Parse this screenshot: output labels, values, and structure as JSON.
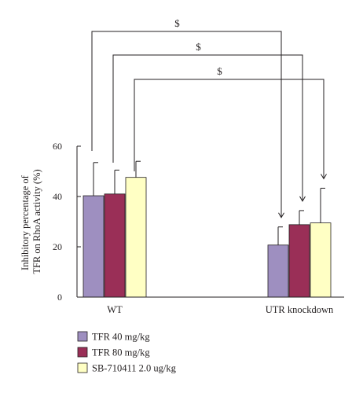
{
  "chart_data": {
    "type": "bar",
    "ylabel": "Inhibitory percentage of\nTFR on RhoA activity (%)",
    "xlabel": "",
    "ylim": [
      0,
      60
    ],
    "yticks": [
      0,
      20,
      40,
      60
    ],
    "categories": [
      "WT",
      "UTR knockdown"
    ],
    "series": [
      {
        "name": "TFR 40 mg/kg",
        "color": "#9e8fc0",
        "values": [
          40.3,
          20.7
        ],
        "errors": [
          13.2,
          7.2
        ]
      },
      {
        "name": "TFR 80 mg/kg",
        "color": "#9a2f57",
        "values": [
          41.0,
          28.8
        ],
        "errors": [
          9.5,
          5.6
        ]
      },
      {
        "name": "SB-710411 2.0 ug/kg",
        "color": "#ffffc4",
        "values": [
          47.6,
          29.5
        ],
        "errors": [
          6.4,
          13.8
        ]
      }
    ],
    "significance": [
      {
        "label": "$",
        "series": 0
      },
      {
        "label": "$",
        "series": 1
      },
      {
        "label": "$",
        "series": 2
      }
    ],
    "legend_position": "bottom-left",
    "grid": false
  }
}
